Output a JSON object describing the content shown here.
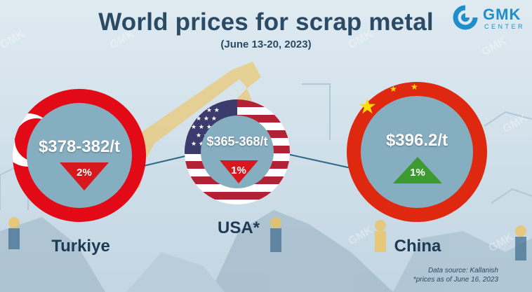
{
  "header": {
    "title": "World prices for scrap metal",
    "subtitle": "(June 13-20, 2023)"
  },
  "logo": {
    "name": "GMK",
    "sub": "CENTER",
    "color": "#1f8ec9"
  },
  "markets": [
    {
      "country": "Turkiye",
      "price": "$378-382/t",
      "change": "2%",
      "direction": "down",
      "flag": "turkey-flag"
    },
    {
      "country": "USA*",
      "price": "$365-368/t",
      "change": "1%",
      "direction": "down",
      "flag": "usa-flag"
    },
    {
      "country": "China",
      "price": "$396.2/t",
      "change": "1%",
      "direction": "up",
      "flag": "china-flag"
    }
  ],
  "footer": {
    "source": "Data source: Kallanish",
    "note": "*prices as of June 16, 2023"
  },
  "colors": {
    "title": "#2b4a64",
    "down": "#d7181f",
    "up": "#3c9a2f",
    "circle_fill": "#7fa9bd"
  }
}
